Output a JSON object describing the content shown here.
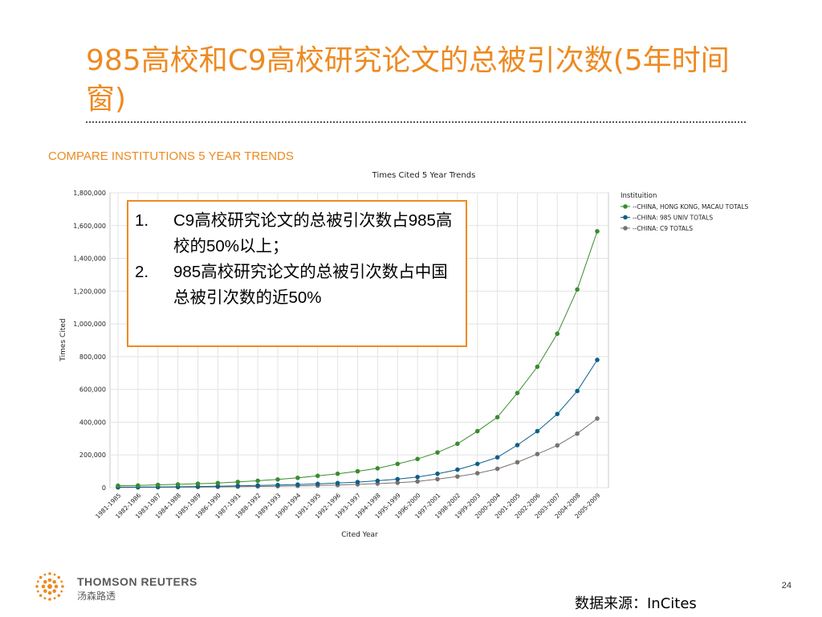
{
  "slide": {
    "title": "985高校和C9高校研究论文的总被引次数(5年时间窗)",
    "section_heading": "COMPARE INSTITUTIONS 5 YEAR TRENDS",
    "callout": [
      {
        "num": "1.",
        "text": "C9高校研究论文的总被引次数占985高校的50%以上；"
      },
      {
        "num": "2.",
        "text": "985高校研究论文的总被引次数占中国总被引次数的近50%"
      }
    ],
    "logo": {
      "name": "THOMSON REUTERS",
      "sub": "汤森路透"
    },
    "page_number": "24",
    "source": "数据来源：InCites"
  },
  "colors": {
    "accent": "#ed8a22",
    "china_total": "#3a8c2f",
    "univ_985": "#0d5f8a",
    "c9": "#7a726e"
  },
  "chart_data": {
    "type": "line",
    "title": "Times Cited 5 Year Trends",
    "xlabel": "Cited Year",
    "ylabel": "Times Cited",
    "ylim": [
      0,
      1800000
    ],
    "yticks": [
      0,
      200000,
      400000,
      600000,
      800000,
      1000000,
      1200000,
      1400000,
      1600000,
      1800000
    ],
    "ytick_labels": [
      "0",
      "200,000",
      "400,000",
      "600,000",
      "800,000",
      "1,000,000",
      "1,200,000",
      "1,400,000",
      "1,600,000",
      "1,800,000"
    ],
    "grid": true,
    "legend_title": "Instituition",
    "legend_position": "top-right",
    "categories": [
      "1981-1985",
      "1982-1986",
      "1983-1987",
      "1984-1988",
      "1985-1989",
      "1986-1990",
      "1987-1991",
      "1988-1992",
      "1989-1993",
      "1990-1994",
      "1991-1995",
      "1992-1996",
      "1993-1997",
      "1994-1998",
      "1995-1999",
      "1996-2000",
      "1997-2001",
      "1998-2002",
      "1999-2003",
      "2000-2004",
      "2001-2005",
      "2002-2006",
      "2003-2007",
      "2004-2008",
      "2005-2009"
    ],
    "series": [
      {
        "name": "--CHINA, HONG KONG, MACAU TOTALS",
        "color": "#3a8c2f",
        "values": [
          12000,
          13000,
          17000,
          20000,
          24000,
          28000,
          35000,
          42000,
          50000,
          60000,
          72000,
          85000,
          100000,
          118000,
          145000,
          175000,
          215000,
          268000,
          345000,
          430000,
          578000,
          738000,
          940000,
          1210000,
          1565000
        ]
      },
      {
        "name": "--CHINA: 985 UNIV TOTALS",
        "color": "#0d5f8a",
        "values": [
          3000,
          3500,
          4500,
          5500,
          7000,
          9000,
          11000,
          13500,
          16000,
          19000,
          23000,
          28000,
          34000,
          42000,
          52000,
          65000,
          85000,
          110000,
          145000,
          185000,
          260000,
          345000,
          450000,
          590000,
          780000
        ]
      },
      {
        "name": "--CHINA: C9 TOTALS",
        "color": "#7a726e",
        "values": [
          1500,
          2000,
          2500,
          3000,
          4000,
          5000,
          6000,
          7500,
          9000,
          11000,
          13000,
          16000,
          20000,
          25000,
          30000,
          38000,
          52000,
          68000,
          88000,
          115000,
          155000,
          205000,
          258000,
          330000,
          422000
        ]
      }
    ]
  }
}
